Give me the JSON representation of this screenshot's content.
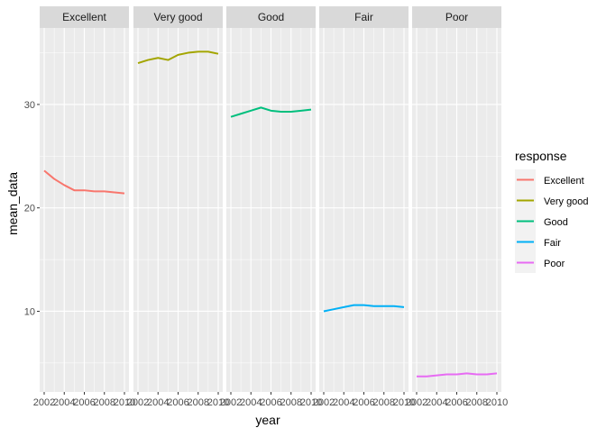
{
  "chart_data": {
    "type": "line",
    "title": "",
    "xlabel": "year",
    "ylabel": "mean_data",
    "ylim": [
      2.2,
      37.4
    ],
    "xlim": [
      2001.55,
      2010.45
    ],
    "y_ticks": [
      10,
      20,
      30
    ],
    "y_tick_labels": [
      "10",
      "20",
      "30"
    ],
    "x_ticks": [
      2002,
      2004,
      2006,
      2008,
      2010
    ],
    "x_tick_labels": [
      "2002",
      "2004",
      "2006",
      "2008",
      "2010"
    ],
    "grid": true,
    "legend_position": "right",
    "legend_title": "response",
    "facets": [
      "Excellent",
      "Very good",
      "Good",
      "Fair",
      "Poor"
    ],
    "series": [
      {
        "name": "Excellent",
        "color": "#F8766D",
        "x": [
          2002,
          2003,
          2004,
          2005,
          2006,
          2007,
          2008,
          2009,
          2010
        ],
        "values": [
          23.6,
          22.8,
          22.2,
          21.7,
          21.7,
          21.6,
          21.6,
          21.5,
          21.4
        ]
      },
      {
        "name": "Very good",
        "color": "#A3A500",
        "x": [
          2002,
          2003,
          2004,
          2005,
          2006,
          2007,
          2008,
          2009,
          2010
        ],
        "values": [
          34.0,
          34.3,
          34.5,
          34.3,
          34.8,
          35.0,
          35.1,
          35.1,
          34.9
        ]
      },
      {
        "name": "Good",
        "color": "#00BF7D",
        "x": [
          2002,
          2003,
          2004,
          2005,
          2006,
          2007,
          2008,
          2009,
          2010
        ],
        "values": [
          28.8,
          29.1,
          29.4,
          29.7,
          29.4,
          29.3,
          29.3,
          29.4,
          29.5
        ]
      },
      {
        "name": "Fair",
        "color": "#00B0F6",
        "x": [
          2002,
          2003,
          2004,
          2005,
          2006,
          2007,
          2008,
          2009,
          2010
        ],
        "values": [
          10.0,
          10.2,
          10.4,
          10.6,
          10.6,
          10.5,
          10.5,
          10.5,
          10.4
        ]
      },
      {
        "name": "Poor",
        "color": "#E76BF3",
        "x": [
          2002,
          2003,
          2004,
          2005,
          2006,
          2007,
          2008,
          2009,
          2010
        ],
        "values": [
          3.7,
          3.7,
          3.8,
          3.9,
          3.9,
          4.0,
          3.9,
          3.9,
          4.0
        ]
      }
    ]
  }
}
